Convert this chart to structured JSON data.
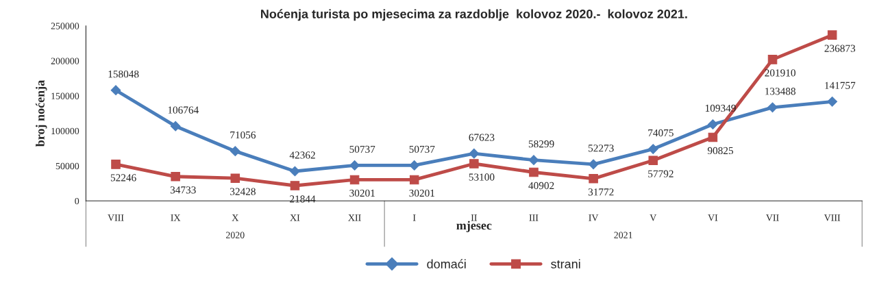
{
  "chart_data": {
    "type": "line",
    "title": "Noćenja turista po mjesecima za razdoblje  kolovoz 2020.-  kolovoz 2021.",
    "xlabel": "mjesec",
    "ylabel": "broj noćenja",
    "categories": [
      "VIII",
      "IX",
      "X",
      "XI",
      "XII",
      "I",
      "II",
      "III",
      "IV",
      "V",
      "VI",
      "VII",
      "VIII"
    ],
    "series": [
      {
        "name": "domaći",
        "color": "#4a7ebb",
        "marker": "diamond",
        "values": [
          158048,
          106764,
          71056,
          42362,
          50737,
          50737,
          67623,
          58299,
          52273,
          74075,
          109349,
          133488,
          141757
        ]
      },
      {
        "name": "strani",
        "color": "#be4b48",
        "marker": "square",
        "values": [
          52246,
          34733,
          32428,
          21844,
          30201,
          30201,
          53100,
          40902,
          31772,
          57792,
          90825,
          201910,
          236873
        ]
      }
    ],
    "annotations": [
      "2020",
      "2021"
    ],
    "ylim": [
      0,
      250000
    ],
    "yticks": [
      0,
      50000,
      100000,
      150000,
      200000,
      250000
    ],
    "grid": false,
    "legend": "bottom",
    "data_labels": true,
    "line_style": "solid"
  }
}
